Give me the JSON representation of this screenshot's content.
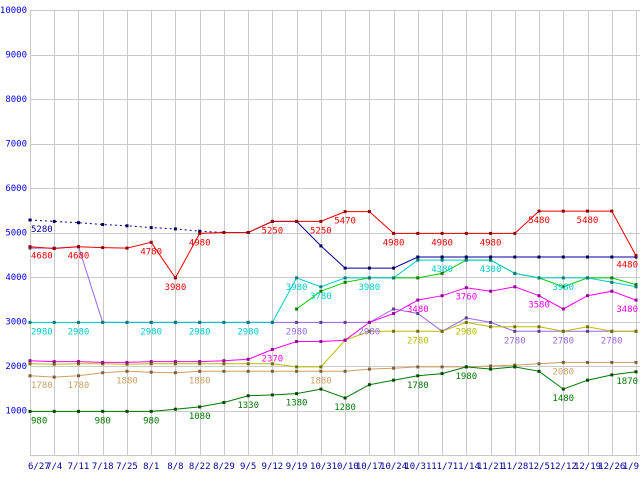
{
  "chart_data": {
    "type": "line",
    "title": "",
    "xlabel": "",
    "ylabel": "",
    "ylim": [
      0,
      10000
    ],
    "y_ticks": [
      1000,
      2000,
      3000,
      4000,
      5000,
      6000,
      7000,
      8000,
      9000,
      10000
    ],
    "grid": true,
    "legend": "none",
    "background_color": "#ffffff",
    "grid_color": "#c9c9c9",
    "y_tick_color": "#0000ee",
    "x_tick_color": "#000099",
    "categories": [
      "6/27",
      "7/4",
      "7/11",
      "7/18",
      "7/25",
      "8/1",
      "8/8",
      "8/22",
      "8/29",
      "9/5",
      "9/12",
      "9/19",
      "10/3",
      "10/10",
      "10/17",
      "10/24",
      "10/31",
      "11/7",
      "11/14",
      "11/21",
      "11/28",
      "12/5",
      "12/12",
      "12/19",
      "12/26",
      "1/9"
    ],
    "series": [
      {
        "name": "navy-dashed",
        "color": "#000099",
        "dash": "2,3",
        "values": [
          5280,
          5250,
          5220,
          5180,
          5150,
          5110,
          5080,
          5030,
          5000,
          5000,
          null,
          null,
          null,
          null,
          null,
          null,
          null,
          null,
          null,
          null,
          null,
          null,
          null,
          null,
          null,
          null
        ]
      },
      {
        "name": "purple",
        "color": "#9966ee",
        "dash": null,
        "values": [
          4650,
          4650,
          4680,
          2980,
          2980,
          2980,
          2980,
          2980,
          2980,
          2980,
          2980,
          2980,
          2980,
          2980,
          2980,
          3280,
          3180,
          2780,
          3080,
          2980,
          2780,
          2780,
          2780,
          2780,
          2780,
          2780
        ]
      },
      {
        "name": "tan",
        "color": "#cc9f66",
        "dash": null,
        "values": [
          1780,
          1750,
          1780,
          1850,
          1880,
          1860,
          1850,
          1880,
          1880,
          1880,
          1880,
          1880,
          1880,
          1880,
          1930,
          1950,
          1980,
          1980,
          1980,
          2000,
          2020,
          2050,
          2080,
          2080,
          2080,
          2080
        ]
      },
      {
        "name": "olive",
        "color": "#bbbb00",
        "dash": null,
        "values": [
          2050,
          2040,
          2050,
          2050,
          2040,
          2050,
          2050,
          2050,
          2050,
          2050,
          2050,
          1980,
          1980,
          2580,
          2780,
          2780,
          2780,
          2780,
          2980,
          2880,
          2880,
          2880,
          2780,
          2880,
          2780,
          2780
        ]
      },
      {
        "name": "magenta",
        "color": "#ff00ff",
        "dash": null,
        "values": [
          2120,
          2100,
          2100,
          2080,
          2080,
          2100,
          2100,
          2100,
          2120,
          2150,
          2370,
          2550,
          2550,
          2580,
          2980,
          3180,
          3480,
          3580,
          3760,
          3680,
          3780,
          3580,
          3280,
          3580,
          3680,
          3480
        ]
      },
      {
        "name": "lime",
        "color": "#00cc00",
        "dash": null,
        "values": [
          null,
          null,
          null,
          null,
          null,
          null,
          null,
          null,
          null,
          null,
          null,
          3280,
          3680,
          3880,
          3980,
          3980,
          3980,
          4080,
          4380,
          4380,
          4080,
          3980,
          3780,
          3980,
          3980,
          3830
        ]
      },
      {
        "name": "cyan",
        "color": "#00cccc",
        "dash": null,
        "values": [
          2980,
          2980,
          2980,
          2980,
          2980,
          2980,
          2980,
          2980,
          2980,
          2980,
          2980,
          3980,
          3780,
          3980,
          3980,
          3980,
          4380,
          4380,
          4380,
          4380,
          4080,
          3980,
          3980,
          3980,
          3880,
          3780
        ]
      },
      {
        "name": "dark-green",
        "color": "#007700",
        "dash": null,
        "values": [
          980,
          980,
          980,
          980,
          980,
          980,
          1030,
          1080,
          1180,
          1330,
          1350,
          1380,
          1480,
          1280,
          1580,
          1680,
          1780,
          1830,
          1980,
          1930,
          1980,
          1880,
          1480,
          1680,
          1800,
          1870
        ]
      },
      {
        "name": "navy",
        "color": "#000099",
        "dash": null,
        "values": [
          null,
          null,
          null,
          null,
          null,
          null,
          null,
          null,
          null,
          5000,
          5250,
          5250,
          4700,
          4200,
          4200,
          4200,
          4450,
          4450,
          4450,
          4450,
          4450,
          4450,
          4450,
          4450,
          4450,
          4450
        ]
      },
      {
        "name": "red",
        "color": "#ee0000",
        "dash": null,
        "values": [
          4680,
          4640,
          4680,
          4660,
          4650,
          4780,
          3980,
          4980,
          5000,
          5000,
          5250,
          5250,
          5250,
          5470,
          5470,
          4980,
          4980,
          4980,
          4980,
          4980,
          4980,
          5480,
          5480,
          5480,
          5480,
          4480
        ]
      }
    ],
    "point_labels": [
      {
        "series": "navy-dashed",
        "index": 0,
        "text": "5280",
        "align": "start"
      },
      {
        "series": "red",
        "index": 0,
        "text": "4680",
        "align": "start"
      },
      {
        "series": "red",
        "index": 2,
        "text": "4680"
      },
      {
        "series": "red",
        "index": 5,
        "text": "4780"
      },
      {
        "series": "red",
        "index": 6,
        "text": "3980"
      },
      {
        "series": "red",
        "index": 7,
        "text": "4980"
      },
      {
        "series": "red",
        "index": 10,
        "text": "5250"
      },
      {
        "series": "red",
        "index": 12,
        "text": "5250"
      },
      {
        "series": "red",
        "index": 13,
        "text": "5470"
      },
      {
        "series": "red",
        "index": 15,
        "text": "4980"
      },
      {
        "series": "red",
        "index": 17,
        "text": "4980"
      },
      {
        "series": "red",
        "index": 19,
        "text": "4980"
      },
      {
        "series": "red",
        "index": 21,
        "text": "5480"
      },
      {
        "series": "red",
        "index": 23,
        "text": "5480"
      },
      {
        "series": "red",
        "index": 25,
        "text": "4480",
        "align": "end"
      },
      {
        "series": "purple",
        "index": 11,
        "text": "2980"
      },
      {
        "series": "purple",
        "index": 14,
        "text": "2980"
      },
      {
        "series": "purple",
        "index": 20,
        "text": "2780"
      },
      {
        "series": "purple",
        "index": 22,
        "text": "2780"
      },
      {
        "series": "purple",
        "index": 24,
        "text": "2780"
      },
      {
        "series": "cyan",
        "index": 0,
        "text": "2980",
        "align": "start"
      },
      {
        "series": "cyan",
        "index": 2,
        "text": "2980"
      },
      {
        "series": "cyan",
        "index": 5,
        "text": "2980"
      },
      {
        "series": "cyan",
        "index": 7,
        "text": "2980"
      },
      {
        "series": "cyan",
        "index": 9,
        "text": "2980"
      },
      {
        "series": "cyan",
        "index": 11,
        "text": "3980"
      },
      {
        "series": "cyan",
        "index": 12,
        "text": "3780"
      },
      {
        "series": "cyan",
        "index": 14,
        "text": "3980"
      },
      {
        "series": "cyan",
        "index": 17,
        "text": "4380"
      },
      {
        "series": "cyan",
        "index": 19,
        "text": "4380"
      },
      {
        "series": "cyan",
        "index": 22,
        "text": "3980"
      },
      {
        "series": "magenta",
        "index": 10,
        "text": "2370"
      },
      {
        "series": "magenta",
        "index": 16,
        "text": "3480"
      },
      {
        "series": "magenta",
        "index": 18,
        "text": "3760"
      },
      {
        "series": "magenta",
        "index": 21,
        "text": "3580"
      },
      {
        "series": "magenta",
        "index": 25,
        "text": "3480",
        "align": "end"
      },
      {
        "series": "olive",
        "index": 16,
        "text": "2780"
      },
      {
        "series": "olive",
        "index": 18,
        "text": "2980"
      },
      {
        "series": "tan",
        "index": 0,
        "text": "1780",
        "align": "start"
      },
      {
        "series": "tan",
        "index": 2,
        "text": "1780"
      },
      {
        "series": "tan",
        "index": 4,
        "text": "1880"
      },
      {
        "series": "tan",
        "index": 7,
        "text": "1880"
      },
      {
        "series": "tan",
        "index": 12,
        "text": "1880"
      },
      {
        "series": "tan",
        "index": 22,
        "text": "2080"
      },
      {
        "series": "dark-green",
        "index": 0,
        "text": "980",
        "align": "start"
      },
      {
        "series": "dark-green",
        "index": 3,
        "text": "980"
      },
      {
        "series": "dark-green",
        "index": 5,
        "text": "980"
      },
      {
        "series": "dark-green",
        "index": 7,
        "text": "1080"
      },
      {
        "series": "dark-green",
        "index": 9,
        "text": "1330"
      },
      {
        "series": "dark-green",
        "index": 11,
        "text": "1380"
      },
      {
        "series": "dark-green",
        "index": 13,
        "text": "1280"
      },
      {
        "series": "dark-green",
        "index": 16,
        "text": "1780"
      },
      {
        "series": "dark-green",
        "index": 18,
        "text": "1980"
      },
      {
        "series": "dark-green",
        "index": 22,
        "text": "1480"
      },
      {
        "series": "dark-green",
        "index": 25,
        "text": "1870",
        "align": "end"
      }
    ]
  }
}
